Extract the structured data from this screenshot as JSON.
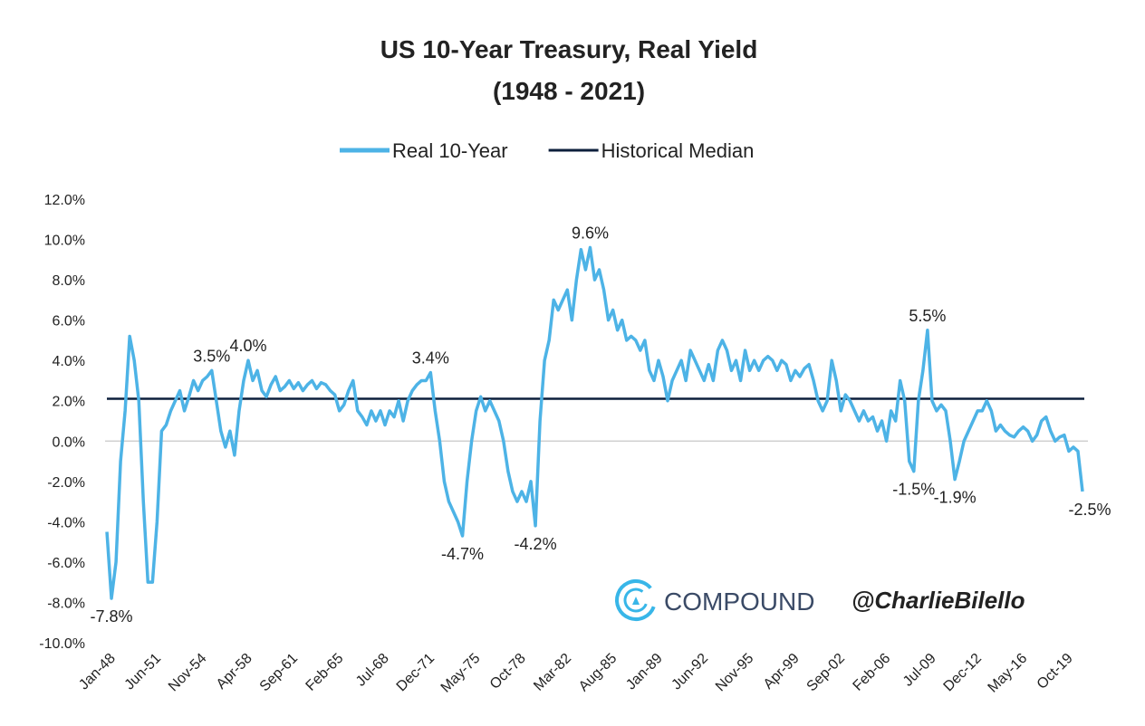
{
  "chart_data": {
    "type": "line",
    "title": "US 10-Year Treasury, Real Yield",
    "subtitle": "(1948 - 2021)",
    "annotations": [
      "COMPOUND",
      "@CharlieBilello"
    ],
    "legend": "top",
    "grid": false,
    "ylim": [
      -10,
      12
    ],
    "yticks": [
      {
        "value": -10,
        "label": "-10.0%"
      },
      {
        "value": -8,
        "label": "-8.0%"
      },
      {
        "value": -6,
        "label": "-6.0%"
      },
      {
        "value": -4,
        "label": "-4.0%"
      },
      {
        "value": -2,
        "label": "-2.0%"
      },
      {
        "value": 0,
        "label": "0.0%"
      },
      {
        "value": 2,
        "label": "2.0%"
      },
      {
        "value": 4,
        "label": "4.0%"
      },
      {
        "value": 6,
        "label": "6.0%"
      },
      {
        "value": 8,
        "label": "8.0%"
      },
      {
        "value": 10,
        "label": "10.0%"
      },
      {
        "value": 12,
        "label": "12.0%"
      }
    ],
    "categories": [
      "Jan-48",
      null,
      null,
      null,
      null,
      null,
      null,
      null,
      null,
      null,
      "Jun-51",
      null,
      null,
      null,
      null,
      null,
      null,
      null,
      null,
      null,
      "Nov-54",
      null,
      null,
      null,
      null,
      null,
      null,
      null,
      null,
      null,
      "Apr-58",
      null,
      null,
      null,
      null,
      null,
      null,
      null,
      null,
      null,
      "Sep-61",
      null,
      null,
      null,
      null,
      null,
      null,
      null,
      null,
      null,
      "Feb-65",
      null,
      null,
      null,
      null,
      null,
      null,
      null,
      null,
      null,
      "Jul-68",
      null,
      null,
      null,
      null,
      null,
      null,
      null,
      null,
      null,
      "Dec-71",
      null,
      null,
      null,
      null,
      null,
      null,
      null,
      null,
      null,
      "May-75",
      null,
      null,
      null,
      null,
      null,
      null,
      null,
      null,
      null,
      "Oct-78",
      null,
      null,
      null,
      null,
      null,
      null,
      null,
      null,
      null,
      "Mar-82",
      null,
      null,
      null,
      null,
      null,
      null,
      null,
      null,
      null,
      "Aug-85",
      null,
      null,
      null,
      null,
      null,
      null,
      null,
      null,
      null,
      "Jan-89",
      null,
      null,
      null,
      null,
      null,
      null,
      null,
      null,
      null,
      "Jun-92",
      null,
      null,
      null,
      null,
      null,
      null,
      null,
      null,
      null,
      "Nov-95",
      null,
      null,
      null,
      null,
      null,
      null,
      null,
      null,
      null,
      "Apr-99",
      null,
      null,
      null,
      null,
      null,
      null,
      null,
      null,
      null,
      "Sep-02",
      null,
      null,
      null,
      null,
      null,
      null,
      null,
      null,
      null,
      "Feb-06",
      null,
      null,
      null,
      null,
      null,
      null,
      null,
      null,
      null,
      "Jul-09",
      null,
      null,
      null,
      null,
      null,
      null,
      null,
      null,
      null,
      "Dec-12",
      null,
      null,
      null,
      null,
      null,
      null,
      null,
      null,
      null,
      "May-16",
      null,
      null,
      null,
      null,
      null,
      null,
      null,
      null,
      null,
      "Oct-19",
      null,
      null,
      null,
      null
    ],
    "series": [
      {
        "name": "Real 10-Year",
        "color": "#4db3e6",
        "values": [
          -4.5,
          -7.8,
          -6,
          -1,
          1.5,
          5.2,
          4,
          2,
          -3,
          -7,
          -7,
          -4,
          0.5,
          0.8,
          1.5,
          2,
          2.5,
          1.5,
          2.2,
          3,
          2.5,
          3,
          3.2,
          3.5,
          2,
          0.5,
          -0.3,
          0.5,
          -0.7,
          1.5,
          3,
          4.0,
          3,
          3.5,
          2.5,
          2.2,
          2.8,
          3.2,
          2.5,
          2.7,
          3,
          2.6,
          2.9,
          2.5,
          2.8,
          3,
          2.6,
          2.9,
          2.8,
          2.5,
          2.3,
          1.5,
          1.8,
          2.5,
          3,
          1.5,
          1.2,
          0.8,
          1.5,
          1,
          1.5,
          0.8,
          1.5,
          1.2,
          2,
          1,
          2,
          2.5,
          2.8,
          3,
          3,
          3.4,
          1.5,
          0,
          -2,
          -3,
          -3.5,
          -4,
          -4.7,
          -2,
          0,
          1.5,
          2.2,
          1.5,
          2,
          1.5,
          1,
          0,
          -1.5,
          -2.5,
          -3,
          -2.5,
          -3,
          -2,
          -4.2,
          1,
          4,
          5,
          7,
          6.5,
          7,
          7.5,
          6,
          8,
          9.5,
          8.5,
          9.6,
          8,
          8.5,
          7.5,
          6,
          6.5,
          5.5,
          6,
          5,
          5.2,
          5,
          4.5,
          5,
          3.5,
          3,
          4,
          3.2,
          2,
          3,
          3.5,
          4,
          3,
          4.5,
          4,
          3.5,
          3,
          3.8,
          3,
          4.5,
          5,
          4.5,
          3.5,
          4,
          3,
          4.5,
          3.5,
          4,
          3.5,
          4,
          4.2,
          4,
          3.5,
          4,
          3.8,
          3,
          3.5,
          3.2,
          3.6,
          3.8,
          3,
          2,
          1.5,
          2,
          4,
          3,
          1.5,
          2.3,
          2,
          1.5,
          1,
          1.5,
          1,
          1.2,
          0.5,
          1,
          0,
          1.5,
          1,
          3,
          2,
          -1,
          -1.5,
          2,
          3.5,
          5.5,
          2,
          1.5,
          1.8,
          1.5,
          0,
          -1.9,
          -1,
          0,
          0.5,
          1,
          1.5,
          1.5,
          2,
          1.5,
          0.5,
          0.8,
          0.5,
          0.3,
          0.2,
          0.5,
          0.7,
          0.5,
          0,
          0.3,
          1,
          1.2,
          0.5,
          0,
          0.2,
          0.3,
          -0.5,
          -0.3,
          -0.5,
          -2.5
        ],
        "value_labels": [
          null,
          "-7.8%",
          null,
          null,
          null,
          null,
          null,
          null,
          null,
          null,
          null,
          null,
          null,
          null,
          null,
          null,
          null,
          null,
          null,
          null,
          null,
          null,
          null,
          "3.5%",
          null,
          null,
          null,
          null,
          null,
          null,
          null,
          "4.0%",
          null,
          null,
          null,
          null,
          null,
          null,
          null,
          null,
          null,
          null,
          null,
          null,
          null,
          null,
          null,
          null,
          null,
          null,
          null,
          null,
          null,
          null,
          null,
          null,
          null,
          null,
          null,
          null,
          null,
          null,
          null,
          null,
          null,
          null,
          null,
          null,
          null,
          null,
          null,
          "3.4%",
          null,
          null,
          null,
          null,
          null,
          null,
          "-4.7%",
          null,
          null,
          null,
          null,
          null,
          null,
          null,
          null,
          null,
          null,
          null,
          null,
          null,
          null,
          null,
          "-4.2%",
          null,
          null,
          null,
          null,
          null,
          null,
          null,
          null,
          null,
          null,
          null,
          "9.6%",
          null,
          null,
          null,
          null,
          null,
          null,
          null,
          null,
          null,
          null,
          null,
          null,
          null,
          null,
          null,
          null,
          null,
          null,
          null,
          null,
          null,
          null,
          null,
          null,
          null,
          null,
          null,
          null,
          null,
          null,
          null,
          null,
          null,
          null,
          null,
          null,
          null,
          null,
          null,
          null,
          null,
          null,
          null,
          null,
          null,
          null,
          null,
          null,
          null,
          null,
          null,
          null,
          null,
          null,
          null,
          null,
          null,
          null,
          null,
          null,
          null,
          null,
          null,
          null,
          null,
          null,
          null,
          null,
          null,
          null,
          "-1.5%",
          null,
          null,
          "5.5%",
          null,
          null,
          null,
          null,
          null,
          "-1.9%",
          null,
          null,
          null,
          null,
          null,
          null,
          null,
          null,
          null,
          null,
          null,
          null,
          null,
          null,
          null,
          null,
          null,
          null,
          null,
          null,
          null,
          null,
          null,
          null,
          null,
          null,
          null,
          "-2.5%"
        ]
      },
      {
        "name": "Historical Median",
        "color": "#0d1f3c",
        "value": 2.1
      }
    ]
  }
}
